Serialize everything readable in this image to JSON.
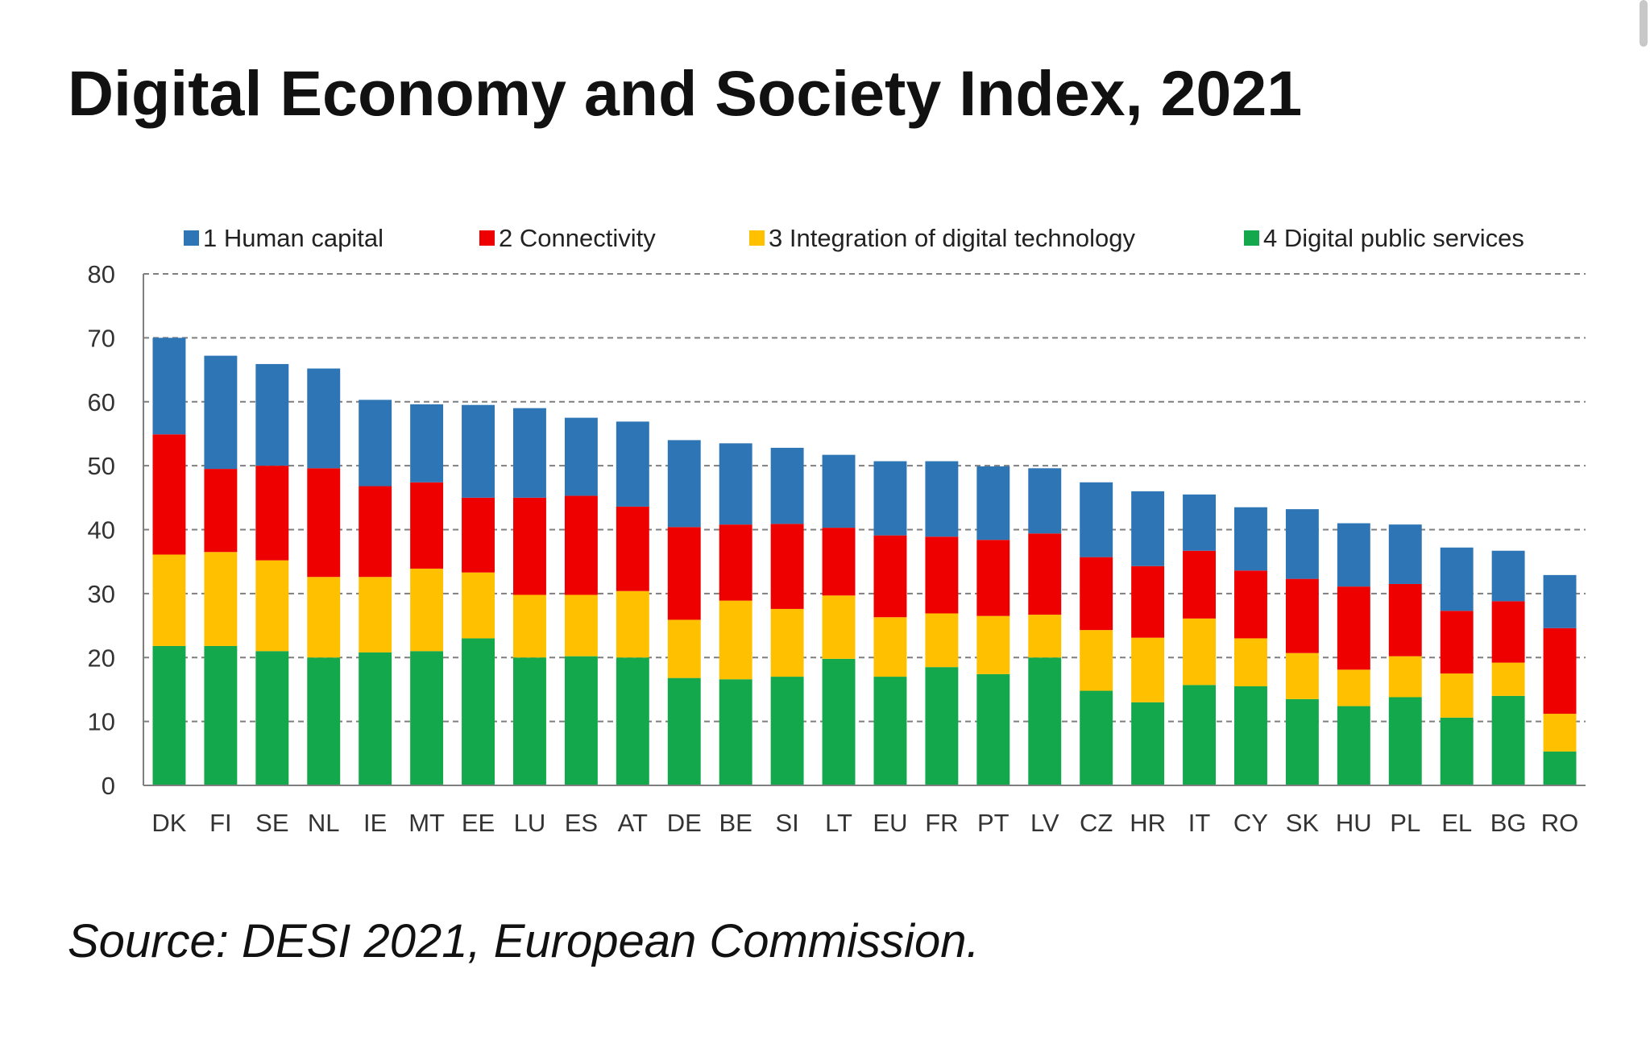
{
  "page": {
    "title": "Digital Economy and Society Index, 2021",
    "source": "Source: DESI 2021, European Commission."
  },
  "chart_data": {
    "type": "bar",
    "stacked": true,
    "title": "",
    "xlabel": "",
    "ylabel": "",
    "ylim": [
      0,
      80
    ],
    "yticks": [
      0,
      10,
      20,
      30,
      40,
      50,
      60,
      70,
      80
    ],
    "grid": "dashed horizontal",
    "legend_position": "top",
    "categories": [
      "DK",
      "FI",
      "SE",
      "NL",
      "IE",
      "MT",
      "EE",
      "LU",
      "ES",
      "AT",
      "DE",
      "BE",
      "SI",
      "LT",
      "EU",
      "FR",
      "PT",
      "LV",
      "CZ",
      "HR",
      "IT",
      "CY",
      "SK",
      "HU",
      "PL",
      "EL",
      "BG",
      "RO"
    ],
    "series": [
      {
        "name": "4 Digital public services",
        "color": "#12A84B",
        "values": [
          21.8,
          21.8,
          21.0,
          20.0,
          20.8,
          21.0,
          23.0,
          20.0,
          20.2,
          20.0,
          16.8,
          16.6,
          17.0,
          19.8,
          17.0,
          18.5,
          17.4,
          20.0,
          14.8,
          13.0,
          15.7,
          15.5,
          13.5,
          12.4,
          13.8,
          10.6,
          14.0,
          5.3
        ]
      },
      {
        "name": "3 Integration of digital technology",
        "color": "#FFC000",
        "values": [
          14.3,
          14.7,
          14.2,
          12.6,
          11.8,
          12.9,
          10.3,
          9.8,
          9.6,
          10.4,
          9.1,
          12.3,
          10.6,
          9.9,
          9.3,
          8.4,
          9.1,
          6.7,
          9.5,
          10.1,
          10.4,
          7.5,
          7.2,
          5.7,
          6.4,
          6.9,
          5.2,
          5.9
        ]
      },
      {
        "name": "2 Connectivity",
        "color": "#EE0000",
        "values": [
          18.8,
          13.0,
          14.8,
          17.0,
          14.2,
          13.5,
          11.7,
          15.2,
          15.5,
          13.2,
          14.5,
          11.9,
          13.3,
          10.6,
          12.8,
          12.0,
          11.9,
          12.7,
          11.4,
          11.2,
          10.6,
          10.6,
          11.6,
          13.0,
          11.3,
          9.8,
          9.6,
          13.4
        ]
      },
      {
        "name": "1 Human capital",
        "color": "#2E75B6",
        "values": [
          15.1,
          17.7,
          15.9,
          15.6,
          13.5,
          12.2,
          14.5,
          14.0,
          12.2,
          13.3,
          13.6,
          12.7,
          11.9,
          11.4,
          11.6,
          11.8,
          11.5,
          10.2,
          11.7,
          11.7,
          8.8,
          9.9,
          10.9,
          9.9,
          9.3,
          9.9,
          7.9,
          8.3
        ]
      }
    ]
  }
}
